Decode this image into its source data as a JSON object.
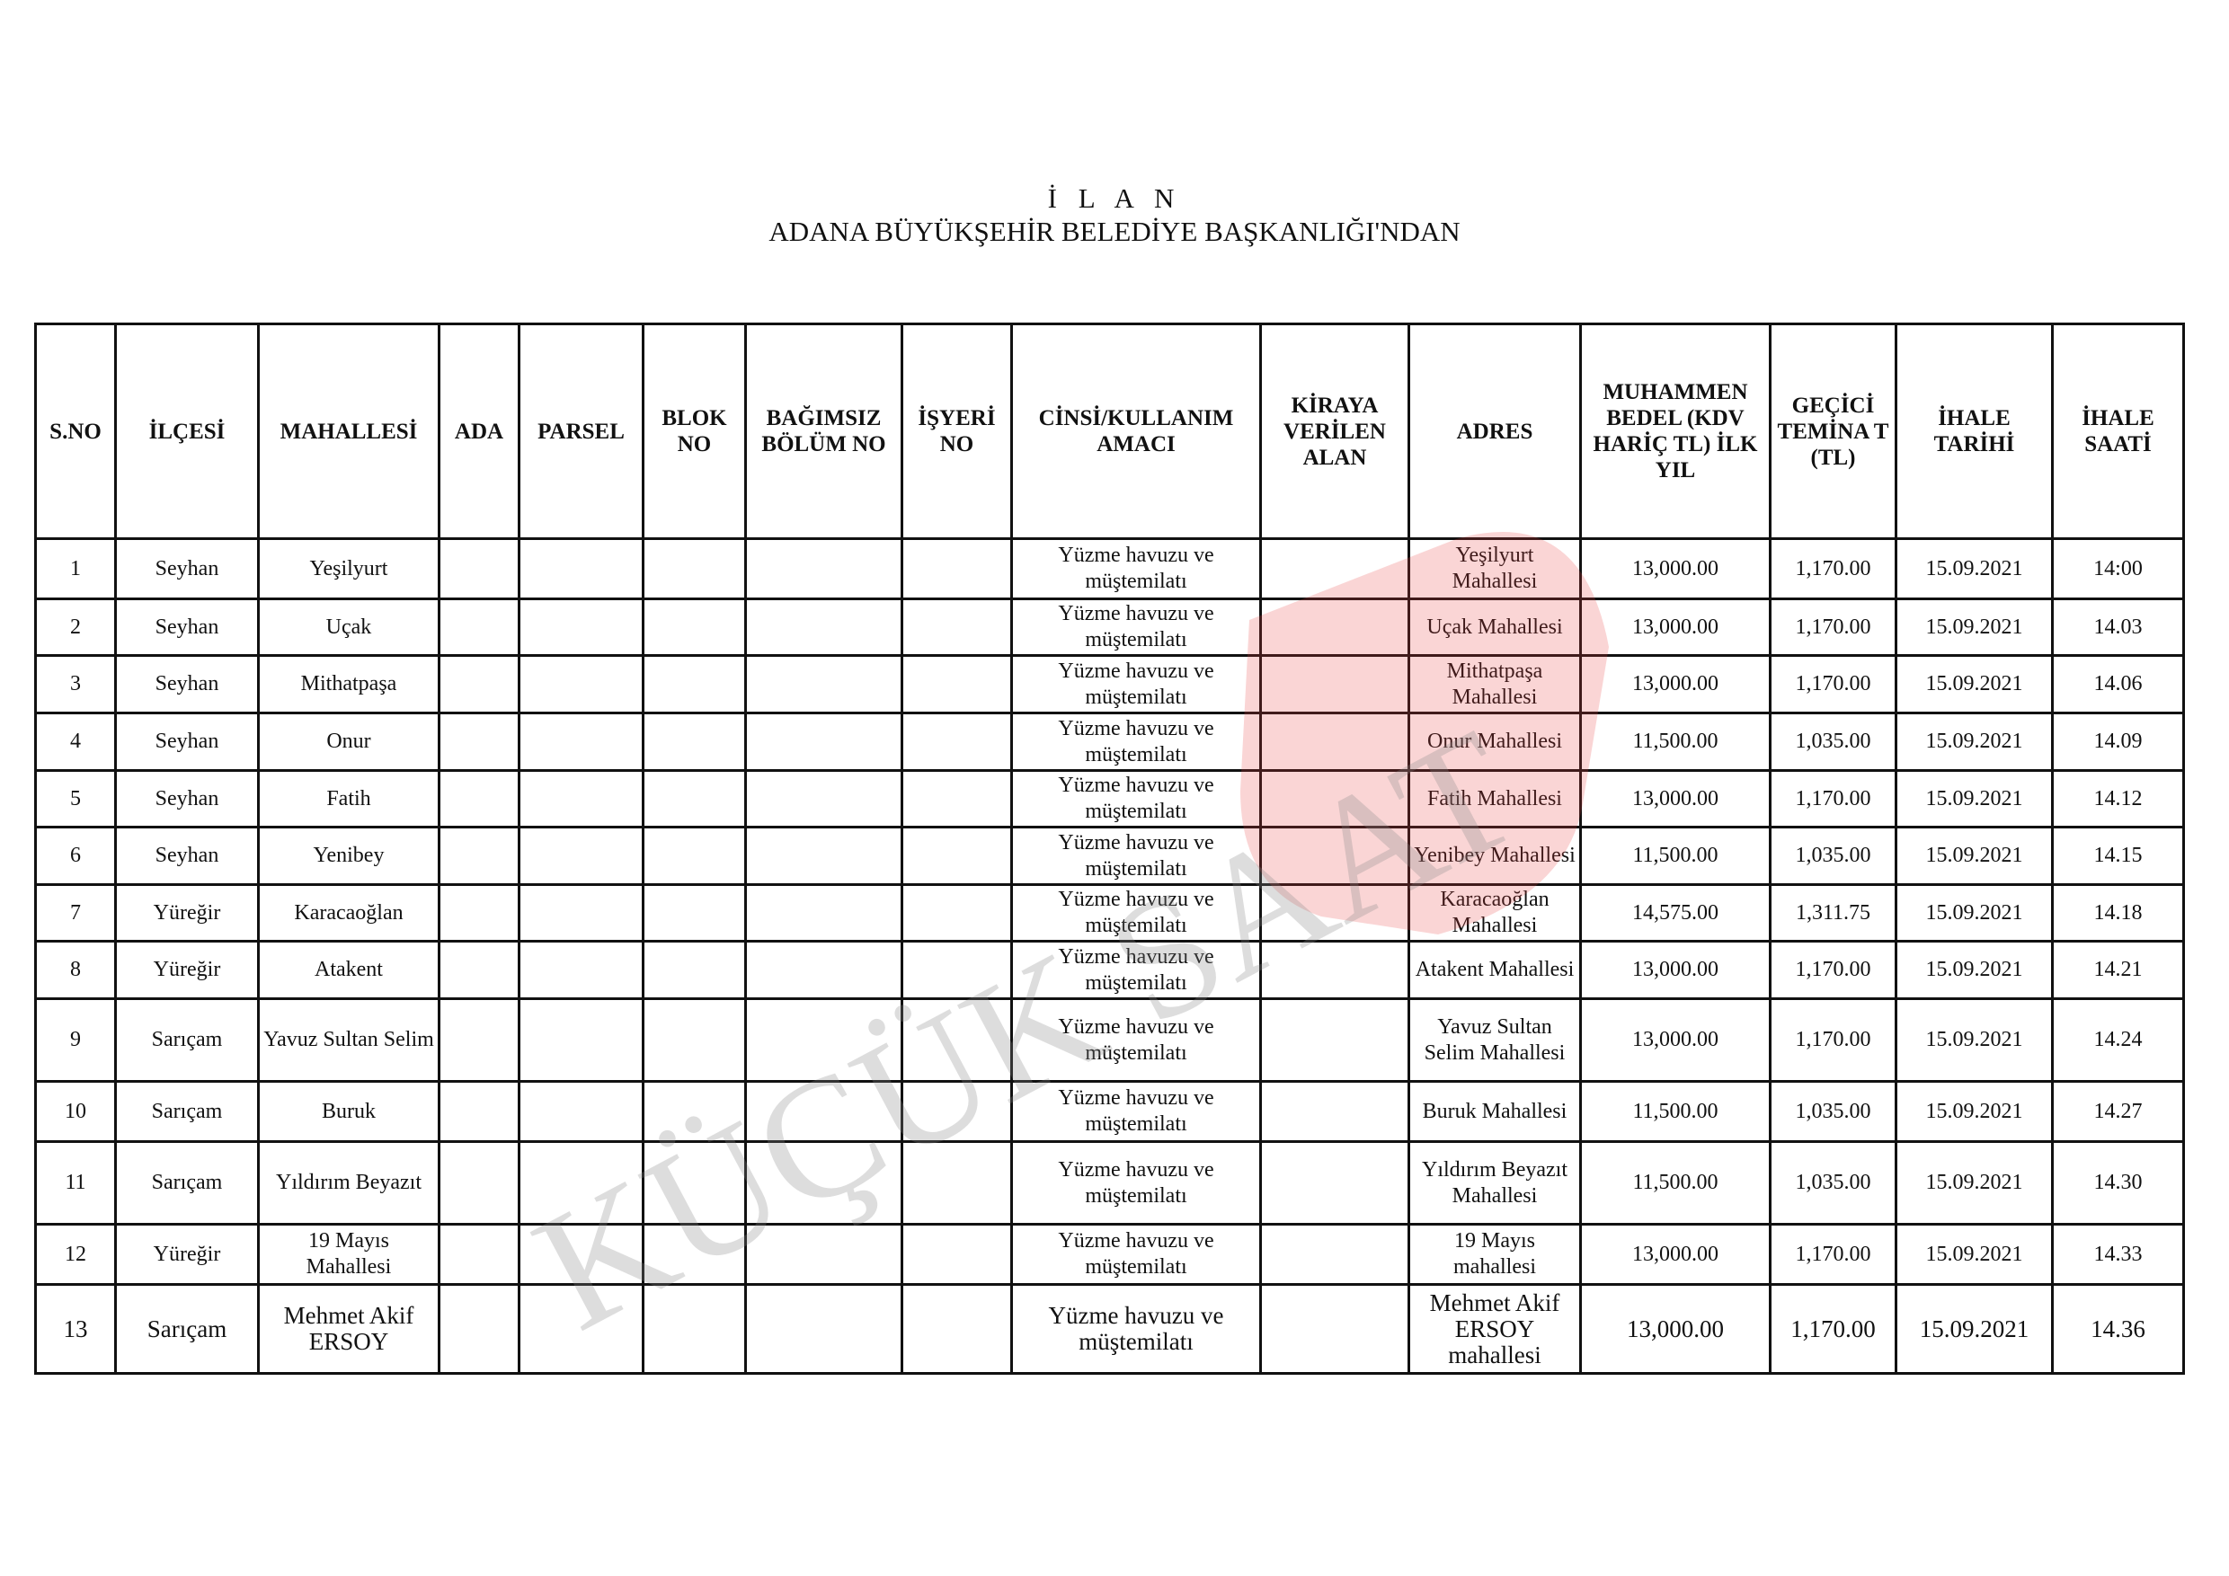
{
  "header": {
    "title": "İ L A N",
    "subtitle": "ADANA BÜYÜKŞEHİR BELEDİYE BAŞKANLIĞI'NDAN"
  },
  "watermark": {
    "text": "KÜÇÜK SAAT",
    "color": "#e84040"
  },
  "table": {
    "columns": [
      "S.NO",
      "İLÇESİ",
      "MAHALLESİ",
      "ADA",
      "PARSEL",
      "BLOK NO",
      "BAĞIMSIZ BÖLÜM NO",
      "İŞYERİ NO",
      "CİNSİ/KULLANIM AMACI",
      "KİRAYA VERİLEN ALAN",
      "ADRES",
      "MUHAMMEN BEDEL (KDV HARİÇ TL) İLK YIL",
      "GEÇİCİ TEMİNA T (TL)",
      "İHALE TARİHİ",
      "İHALE SAATİ"
    ],
    "rows": [
      [
        "1",
        "Seyhan",
        "Yeşilyurt",
        "",
        "",
        "",
        "",
        "",
        "Yüzme havuzu ve müştemilatı",
        "",
        "Yeşilyurt Mahallesi",
        "13,000.00",
        "1,170.00",
        "15.09.2021",
        "14:00"
      ],
      [
        "2",
        "Seyhan",
        "Uçak",
        "",
        "",
        "",
        "",
        "",
        "Yüzme havuzu ve müştemilatı",
        "",
        "Uçak Mahallesi",
        "13,000.00",
        "1,170.00",
        "15.09.2021",
        "14.03"
      ],
      [
        "3",
        "Seyhan",
        "Mithatpaşa",
        "",
        "",
        "",
        "",
        "",
        "Yüzme havuzu ve müştemilatı",
        "",
        "Mithatpaşa Mahallesi",
        "13,000.00",
        "1,170.00",
        "15.09.2021",
        "14.06"
      ],
      [
        "4",
        "Seyhan",
        "Onur",
        "",
        "",
        "",
        "",
        "",
        "Yüzme havuzu ve müştemilatı",
        "",
        "Onur Mahallesi",
        "11,500.00",
        "1,035.00",
        "15.09.2021",
        "14.09"
      ],
      [
        "5",
        "Seyhan",
        "Fatih",
        "",
        "",
        "",
        "",
        "",
        "Yüzme havuzu ve müştemilatı",
        "",
        "Fatih Mahallesi",
        "13,000.00",
        "1,170.00",
        "15.09.2021",
        "14.12"
      ],
      [
        "6",
        "Seyhan",
        "Yenibey",
        "",
        "",
        "",
        "",
        "",
        "Yüzme havuzu ve müştemilatı",
        "",
        "Yenibey Mahallesi",
        "11,500.00",
        "1,035.00",
        "15.09.2021",
        "14.15"
      ],
      [
        "7",
        "Yüreğir",
        "Karacaoğlan",
        "",
        "",
        "",
        "",
        "",
        "Yüzme havuzu ve müştemilatı",
        "",
        "Karacaoğlan Mahallesi",
        "14,575.00",
        "1,311.75",
        "15.09.2021",
        "14.18"
      ],
      [
        "8",
        "Yüreğir",
        "Atakent",
        "",
        "",
        "",
        "",
        "",
        "Yüzme havuzu ve müştemilatı",
        "",
        "Atakent Mahallesi",
        "13,000.00",
        "1,170.00",
        "15.09.2021",
        "14.21"
      ],
      [
        "9",
        "Sarıçam",
        "Yavuz Sultan Selim",
        "",
        "",
        "",
        "",
        "",
        "Yüzme havuzu ve müştemilatı",
        "",
        "Yavuz Sultan Selim Mahallesi",
        "13,000.00",
        "1,170.00",
        "15.09.2021",
        "14.24"
      ],
      [
        "10",
        "Sarıçam",
        "Buruk",
        "",
        "",
        "",
        "",
        "",
        "Yüzme havuzu ve müştemilatı",
        "",
        "Buruk Mahallesi",
        "11,500.00",
        "1,035.00",
        "15.09.2021",
        "14.27"
      ],
      [
        "11",
        "Sarıçam",
        "Yıldırım Beyazıt",
        "",
        "",
        "",
        "",
        "",
        "Yüzme havuzu ve müştemilatı",
        "",
        "Yıldırım Beyazıt Mahallesi",
        "11,500.00",
        "1,035.00",
        "15.09.2021",
        "14.30"
      ],
      [
        "12",
        "Yüreğir",
        "19 Mayıs Mahallesi",
        "",
        "",
        "",
        "",
        "",
        "Yüzme havuzu ve müştemilatı",
        "",
        "19 Mayıs mahallesi",
        "13,000.00",
        "1,170.00",
        "15.09.2021",
        "14.33"
      ],
      [
        "13",
        "Sarıçam",
        "Mehmet Akif ERSOY",
        "",
        "",
        "",
        "",
        "",
        "Yüzme havuzu ve müştemilatı",
        "",
        "Mehmet Akif ERSOY mahallesi",
        "13,000.00",
        "1,170.00",
        "15.09.2021",
        "14.36"
      ]
    ]
  }
}
